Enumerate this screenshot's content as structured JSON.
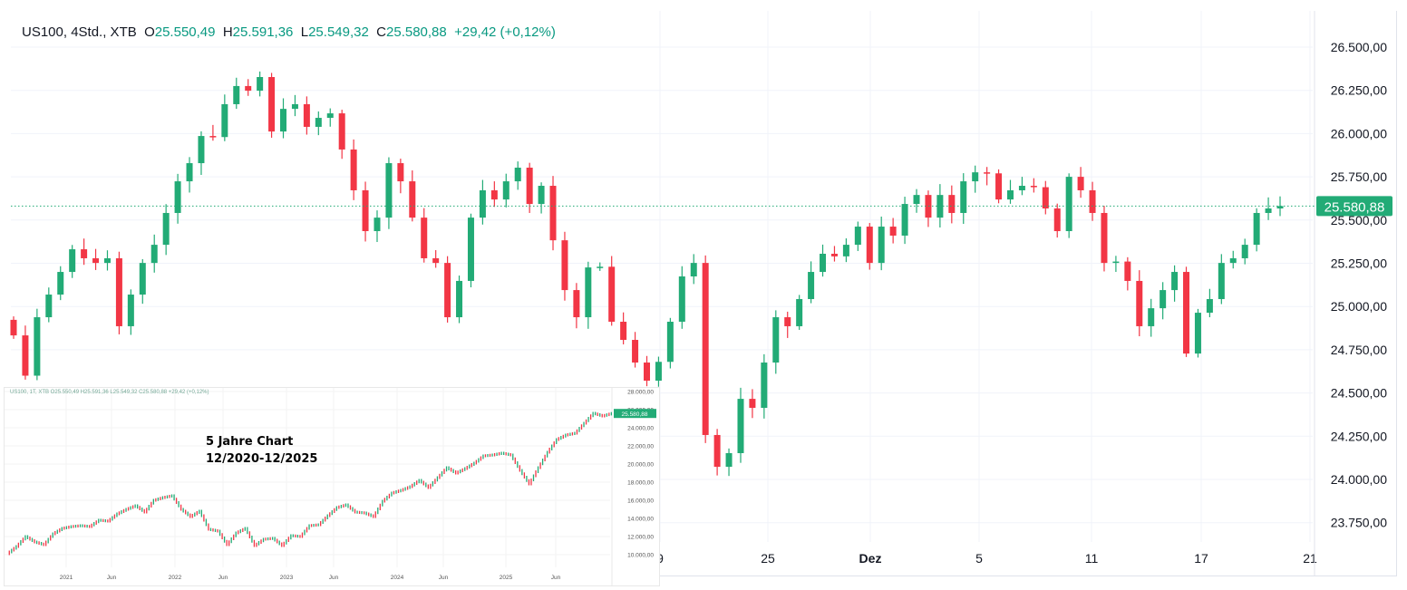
{
  "legend": {
    "symbol": "US100, 4Std., XTB",
    "open_label": "O",
    "open": "25.550,49",
    "high_label": "H",
    "high": "25.591,36",
    "low_label": "L",
    "low": "25.549,32",
    "close_label": "C",
    "close": "25.580,88",
    "change": "+29,42 (+0,12%)"
  },
  "colors": {
    "up": "#22ab76",
    "down": "#f23645",
    "price_tag": "#22ab76",
    "grid": "#f0f3fa",
    "price_line": "#22ab76"
  },
  "chart_data": [
    {
      "type": "candlestick",
      "title": "US100, 4Std., XTB",
      "ylim": [
        23650,
        26600
      ],
      "y_ticks": [
        "26.500,00",
        "26.250,00",
        "26.000,00",
        "25.750,00",
        "25.500,00",
        "25.250,00",
        "25.000,00",
        "24.750,00",
        "24.500,00",
        "24.250,00",
        "24.000,00",
        "23.750,00"
      ],
      "y_tick_values": [
        26500,
        26250,
        26000,
        25750,
        25500,
        25250,
        25000,
        24750,
        24500,
        24250,
        24000,
        23750
      ],
      "x_ticks": [
        "9",
        "25",
        "Dez",
        "5",
        "11",
        "17",
        "21"
      ],
      "last_price": 25580.88,
      "last_price_label": "25.580,88",
      "grid": true,
      "closes": [
        24833,
        24600,
        24938,
        25069,
        25200,
        25331,
        25279,
        25252,
        25279,
        24886,
        25069,
        25252,
        25357,
        25541,
        25724,
        25829,
        25986,
        25980,
        26170,
        26275,
        26248,
        26327,
        26012,
        26143,
        26170,
        26039,
        26091,
        26117,
        25908,
        25672,
        25436,
        25514,
        25829,
        25724,
        25514,
        25279,
        25252,
        24938,
        25148,
        25514,
        25672,
        25619,
        25724,
        25803,
        25593,
        25698,
        25383,
        25095,
        24938,
        25226,
        25230,
        24912,
        24807,
        24676,
        24571,
        24680,
        24912,
        25174,
        25252,
        24257,
        24073,
        24152,
        24466,
        24414,
        24676,
        24938,
        24886,
        25043,
        25200,
        25305,
        25290,
        25357,
        25462,
        25252,
        25462,
        25410,
        25593,
        25645,
        25514,
        25645,
        25541,
        25724,
        25776,
        25770,
        25619,
        25672,
        25698,
        25690,
        25567,
        25436,
        25750,
        25672,
        25541,
        25252,
        25260,
        25148,
        24886,
        24990,
        25095,
        25200,
        24728,
        24964,
        25043,
        25252,
        25279,
        25357,
        25541,
        25567,
        25580.88
      ]
    },
    {
      "type": "line",
      "title": "",
      "annotation": [
        "5 Jahre Chart",
        "12/2020-12/2025"
      ],
      "header": "US100, 1T, XTB  O25.550,49  H25.591,36  L25.549,32  C25.580,88  +29,42 (+0,12%)",
      "y_ticks": [
        "28.000,00",
        "26.000,00",
        "24.000,00",
        "22.000,00",
        "20.000,00",
        "18.000,00",
        "16.000,00",
        "14.000,00",
        "12.000,00",
        "10.000,00"
      ],
      "y_tick_values": [
        28000,
        26000,
        24000,
        22000,
        20000,
        18000,
        16000,
        14000,
        12000,
        10000
      ],
      "x_ticks": [
        "2021",
        "Jun",
        "2022",
        "Jun",
        "2023",
        "Jun",
        "2024",
        "Jun",
        "2025",
        "Jun"
      ],
      "last_price_label": "25.580,88",
      "start_month": "2020-06",
      "monthly_closes": [
        10100,
        10900,
        12000,
        11400,
        11100,
        12300,
        12900,
        13100,
        13200,
        13100,
        13800,
        13700,
        14500,
        15000,
        15400,
        14700,
        16000,
        16300,
        16500,
        15000,
        14200,
        14800,
        12800,
        12600,
        11100,
        12400,
        12900,
        11000,
        11700,
        11800,
        11000,
        12100,
        12000,
        13200,
        13300,
        14300,
        15200,
        15500,
        14700,
        14600,
        14200,
        15900,
        16800,
        17100,
        17500,
        18200,
        17400,
        18500,
        19600,
        19000,
        19500,
        20100,
        20900,
        21000,
        21200,
        21000,
        19300,
        17800,
        19600,
        21300,
        22700,
        23200,
        23400,
        24500,
        25600,
        25300,
        25580
      ]
    }
  ]
}
